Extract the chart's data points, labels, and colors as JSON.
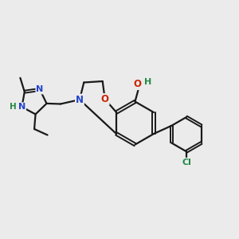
{
  "background_color": "#ebebeb",
  "bond_color": "#1a1a1a",
  "figsize": [
    3.0,
    3.0
  ],
  "dpi": 100,
  "colors": {
    "O": "#cc2200",
    "N": "#2244cc",
    "Cl": "#228844",
    "H": "#228844",
    "C": "#1a1a1a"
  }
}
